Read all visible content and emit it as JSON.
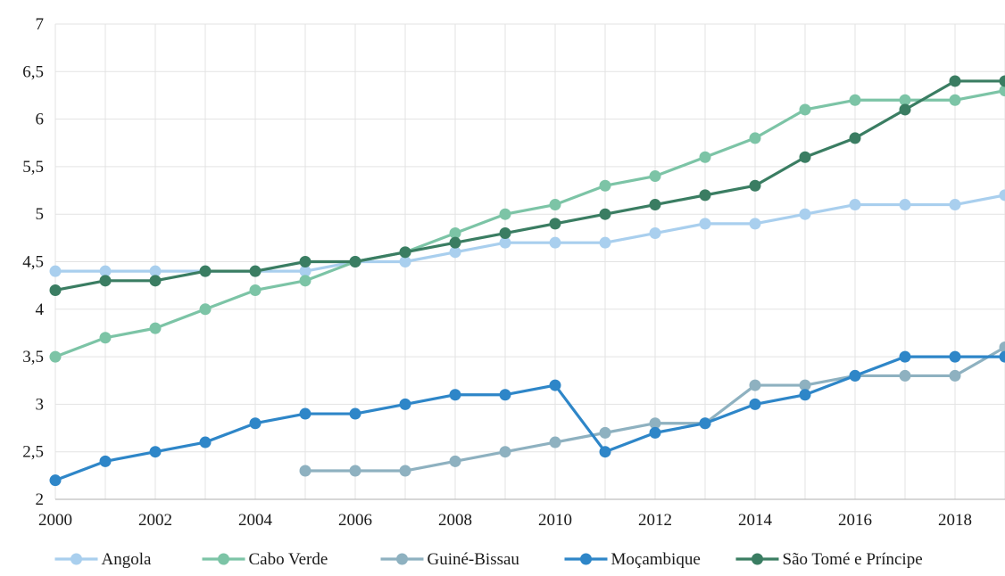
{
  "chart_data": {
    "type": "line",
    "title": "",
    "xlabel": "",
    "ylabel": "",
    "x": [
      2000,
      2001,
      2002,
      2003,
      2004,
      2005,
      2006,
      2007,
      2008,
      2009,
      2010,
      2011,
      2012,
      2013,
      2014,
      2015,
      2016,
      2017,
      2018,
      2019
    ],
    "xlim": [
      2000,
      2019
    ],
    "ylim": [
      2,
      7
    ],
    "x_ticks": [
      "2000",
      "2002",
      "2004",
      "2006",
      "2008",
      "2010",
      "2012",
      "2014",
      "2016",
      "2018"
    ],
    "y_ticks": [
      "2",
      "2,5",
      "3",
      "3,5",
      "4",
      "4,5",
      "5",
      "5,5",
      "6",
      "6,5",
      "7"
    ],
    "grid": true,
    "legend_position": "bottom",
    "series": [
      {
        "name": "Angola",
        "color": "#a9cfee",
        "values": [
          4.4,
          4.4,
          4.4,
          4.4,
          4.4,
          4.4,
          4.5,
          4.5,
          4.6,
          4.7,
          4.7,
          4.7,
          4.8,
          4.9,
          4.9,
          5.0,
          5.1,
          5.1,
          5.1,
          5.2
        ]
      },
      {
        "name": "Cabo Verde",
        "color": "#7cc4a6",
        "values": [
          3.5,
          3.7,
          3.8,
          4.0,
          4.2,
          4.3,
          4.5,
          4.6,
          4.8,
          5.0,
          5.1,
          5.3,
          5.4,
          5.6,
          5.8,
          6.1,
          6.2,
          6.2,
          6.2,
          6.3
        ]
      },
      {
        "name": "Guiné-Bissau",
        "color": "#8eb1c0",
        "values": [
          null,
          null,
          null,
          null,
          null,
          2.3,
          2.3,
          2.3,
          2.4,
          2.5,
          2.6,
          2.7,
          2.8,
          2.8,
          3.2,
          3.2,
          3.3,
          3.3,
          3.3,
          3.6
        ]
      },
      {
        "name": "Moçambique",
        "color": "#2e86c8",
        "values": [
          2.2,
          2.4,
          2.5,
          2.6,
          2.8,
          2.9,
          2.9,
          3.0,
          3.1,
          3.1,
          3.2,
          2.5,
          2.7,
          2.8,
          3.0,
          3.1,
          3.3,
          3.5,
          3.5,
          3.5
        ]
      },
      {
        "name": "São Tomé e Príncipe",
        "color": "#3a7d62",
        "values": [
          4.2,
          4.3,
          4.3,
          4.4,
          4.4,
          4.5,
          4.5,
          4.6,
          4.7,
          4.8,
          4.9,
          5.0,
          5.1,
          5.2,
          5.3,
          5.6,
          5.8,
          6.1,
          6.4,
          6.4
        ]
      }
    ]
  }
}
